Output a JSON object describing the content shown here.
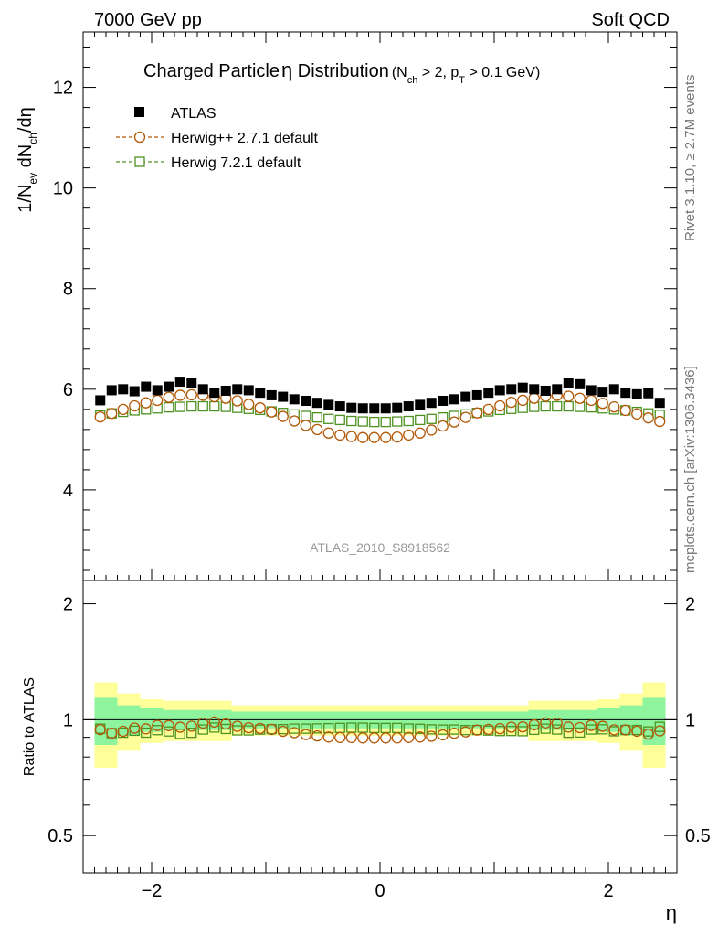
{
  "header": {
    "left": "7000 GeV pp",
    "right": "Soft QCD"
  },
  "title": {
    "main_pre": "Charged Particle",
    "eta": "η",
    "main_post": " Distribution",
    "cut_a": "(N",
    "cut_a_sub": "ch",
    "cut_b": " > 2, p",
    "cut_b_sub": "T",
    "cut_c": " > 0.1 GeV)"
  },
  "side": {
    "top": "Rivet 3.1.10, ≥ 2.7M events",
    "bottom": "mcplots.cern.ch [arXiv:1306.3436]"
  },
  "watermark": "ATLAS_2010_S8918562",
  "axes": {
    "ylabel_main": {
      "a": "1/N",
      "a_sub": "ev",
      "b": " dN",
      "b_sub": "ch",
      "c": "/dη"
    },
    "ylabel_ratio": "Ratio to ATLAS",
    "xlabel": "η",
    "x_ticks": [
      "−2",
      "0",
      "2"
    ],
    "y_ticks_main": [
      "4",
      "6",
      "8",
      "10",
      "12"
    ],
    "y_ticks_ratio": [
      "0.5",
      "1",
      "2"
    ]
  },
  "legend": [
    {
      "label": "ATLAS",
      "marker": "filled-square",
      "color": "#000000"
    },
    {
      "label": "Herwig++ 2.7.1 default",
      "marker": "open-circle",
      "color": "#b35806"
    },
    {
      "label": "Herwig 7.2.1 default",
      "marker": "open-square",
      "color": "#4d9221"
    }
  ],
  "chart_data": {
    "type": "scatter",
    "xlabel": "η",
    "ylabel": "1/N_ev dN_ch/dη",
    "xlim": [
      -2.6,
      2.6
    ],
    "ylim": [
      2.2,
      13.1
    ],
    "x": [
      -2.45,
      -2.35,
      -2.25,
      -2.15,
      -2.05,
      -1.95,
      -1.85,
      -1.75,
      -1.65,
      -1.55,
      -1.45,
      -1.35,
      -1.25,
      -1.15,
      -1.05,
      -0.95,
      -0.85,
      -0.75,
      -0.65,
      -0.55,
      -0.45,
      -0.35,
      -0.25,
      -0.15,
      -0.05,
      0.05,
      0.15,
      0.25,
      0.35,
      0.45,
      0.55,
      0.65,
      0.75,
      0.85,
      0.95,
      1.05,
      1.15,
      1.25,
      1.35,
      1.45,
      1.55,
      1.65,
      1.75,
      1.85,
      1.95,
      2.05,
      2.15,
      2.25,
      2.35,
      2.45
    ],
    "series": [
      {
        "name": "ATLAS",
        "color": "#000000",
        "values": [
          5.78,
          5.98,
          6.0,
          5.96,
          6.05,
          5.98,
          6.05,
          6.15,
          6.12,
          6.0,
          5.93,
          5.97,
          6.0,
          5.98,
          5.93,
          5.88,
          5.85,
          5.8,
          5.77,
          5.73,
          5.69,
          5.66,
          5.63,
          5.62,
          5.62,
          5.62,
          5.63,
          5.66,
          5.69,
          5.73,
          5.77,
          5.8,
          5.85,
          5.88,
          5.93,
          5.98,
          6.0,
          6.03,
          6.0,
          5.97,
          6.0,
          6.12,
          6.1,
          5.98,
          5.95,
          6.0,
          5.93,
          5.9,
          5.92,
          5.73
        ]
      },
      {
        "name": "Herwig++ 2.7.1 default",
        "color": "#b35806",
        "values": [
          5.45,
          5.52,
          5.6,
          5.67,
          5.73,
          5.78,
          5.84,
          5.88,
          5.89,
          5.88,
          5.85,
          5.82,
          5.77,
          5.7,
          5.63,
          5.55,
          5.46,
          5.37,
          5.28,
          5.2,
          5.13,
          5.09,
          5.06,
          5.04,
          5.04,
          5.04,
          5.05,
          5.09,
          5.13,
          5.19,
          5.27,
          5.35,
          5.44,
          5.53,
          5.6,
          5.67,
          5.74,
          5.78,
          5.82,
          5.86,
          5.88,
          5.86,
          5.82,
          5.78,
          5.72,
          5.65,
          5.58,
          5.51,
          5.43,
          5.36
        ]
      },
      {
        "name": "Herwig 7.2.1 default",
        "color": "#4d9221",
        "values": [
          5.48,
          5.52,
          5.55,
          5.58,
          5.6,
          5.62,
          5.64,
          5.65,
          5.66,
          5.66,
          5.66,
          5.65,
          5.63,
          5.61,
          5.59,
          5.56,
          5.53,
          5.5,
          5.47,
          5.44,
          5.41,
          5.39,
          5.37,
          5.36,
          5.35,
          5.35,
          5.36,
          5.37,
          5.39,
          5.41,
          5.44,
          5.47,
          5.5,
          5.53,
          5.56,
          5.59,
          5.61,
          5.63,
          5.65,
          5.66,
          5.66,
          5.66,
          5.65,
          5.64,
          5.62,
          5.6,
          5.58,
          5.55,
          5.52,
          5.49
        ]
      }
    ],
    "ratio": {
      "ylim": [
        0.4,
        2.3
      ],
      "log_scale": true,
      "band_edges": [
        -2.5,
        -2.3,
        -2.1,
        -1.9,
        -1.3,
        1.3,
        1.9,
        2.1,
        2.3,
        2.5
      ],
      "band_inner_half_width": [
        0.14,
        0.09,
        0.07,
        0.06,
        0.05,
        0.06,
        0.07,
        0.09,
        0.14
      ],
      "band_outer_half_width": [
        0.25,
        0.17,
        0.13,
        0.12,
        0.09,
        0.12,
        0.13,
        0.17,
        0.25
      ]
    }
  }
}
